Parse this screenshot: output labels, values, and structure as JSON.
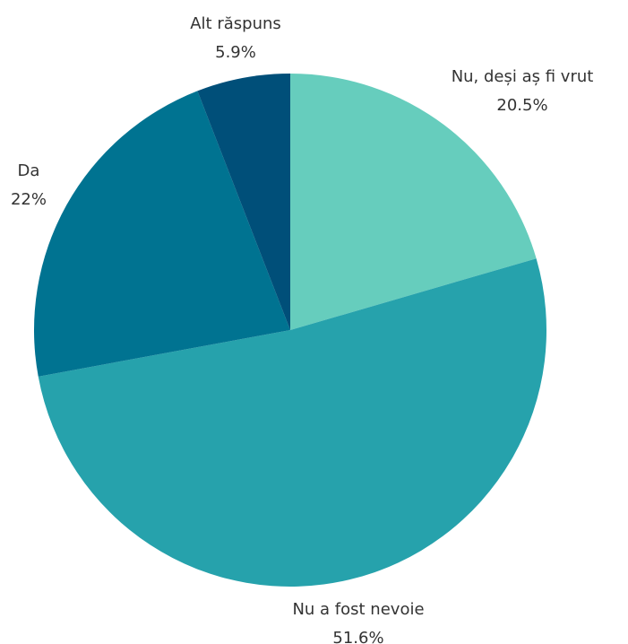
{
  "chart_data": {
    "type": "pie",
    "categories": [
      "Nu, deși aș fi vrut",
      "Nu a fost nevoie",
      "Da",
      "Alt răspuns"
    ],
    "values": [
      20.5,
      51.6,
      22,
      5.9
    ],
    "value_labels": [
      "20.5%",
      "51.6%",
      "22%",
      "5.9%"
    ],
    "colors": [
      "#66cdbd",
      "#26a2ac",
      "#007391",
      "#004f79"
    ]
  }
}
